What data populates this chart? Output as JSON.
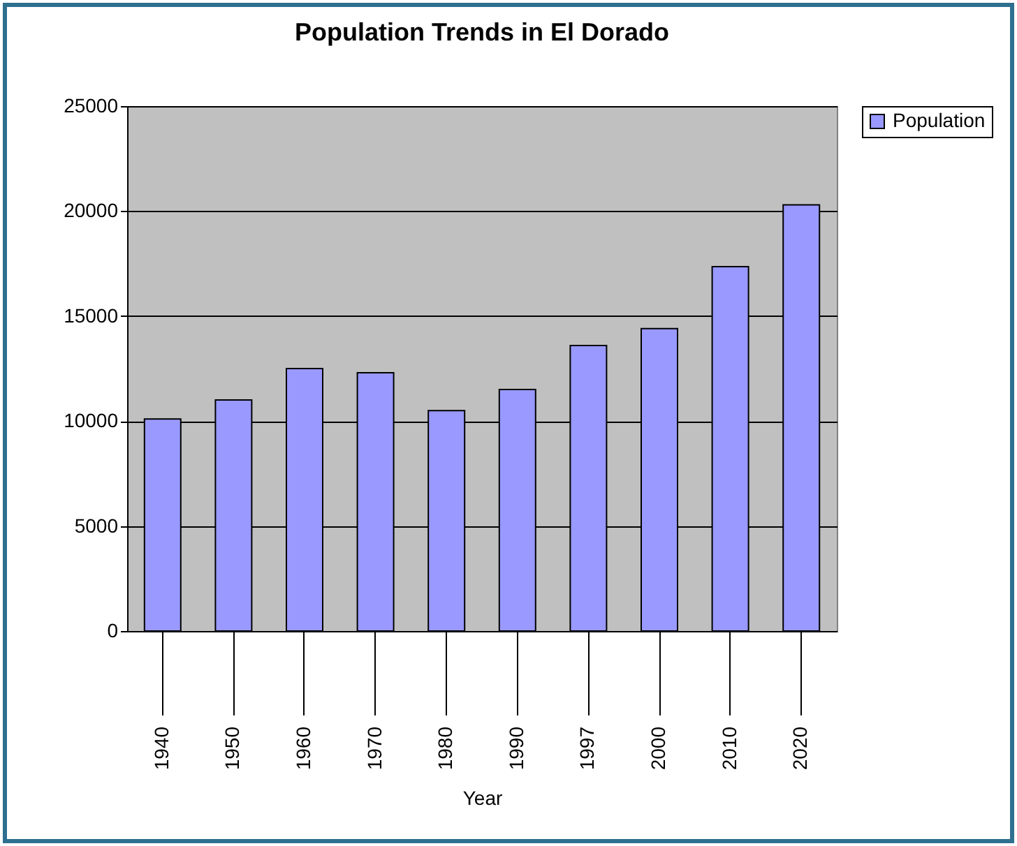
{
  "chart_data": {
    "type": "bar",
    "title": "Population Trends in El Dorado",
    "xlabel": "Year",
    "categories": [
      "1940",
      "1950",
      "1960",
      "1970",
      "1980",
      "1990",
      "1997",
      "2000",
      "2010",
      "2020"
    ],
    "series": [
      {
        "name": "Population",
        "color": "#9999ff",
        "values": [
          10100,
          11000,
          12500,
          12300,
          10500,
          11500,
          13600,
          14400,
          17350,
          20300
        ]
      }
    ],
    "ylim": [
      0,
      25000
    ],
    "yticks": [
      0,
      5000,
      10000,
      15000,
      20000,
      25000
    ],
    "grid": "y",
    "legend": "right"
  }
}
